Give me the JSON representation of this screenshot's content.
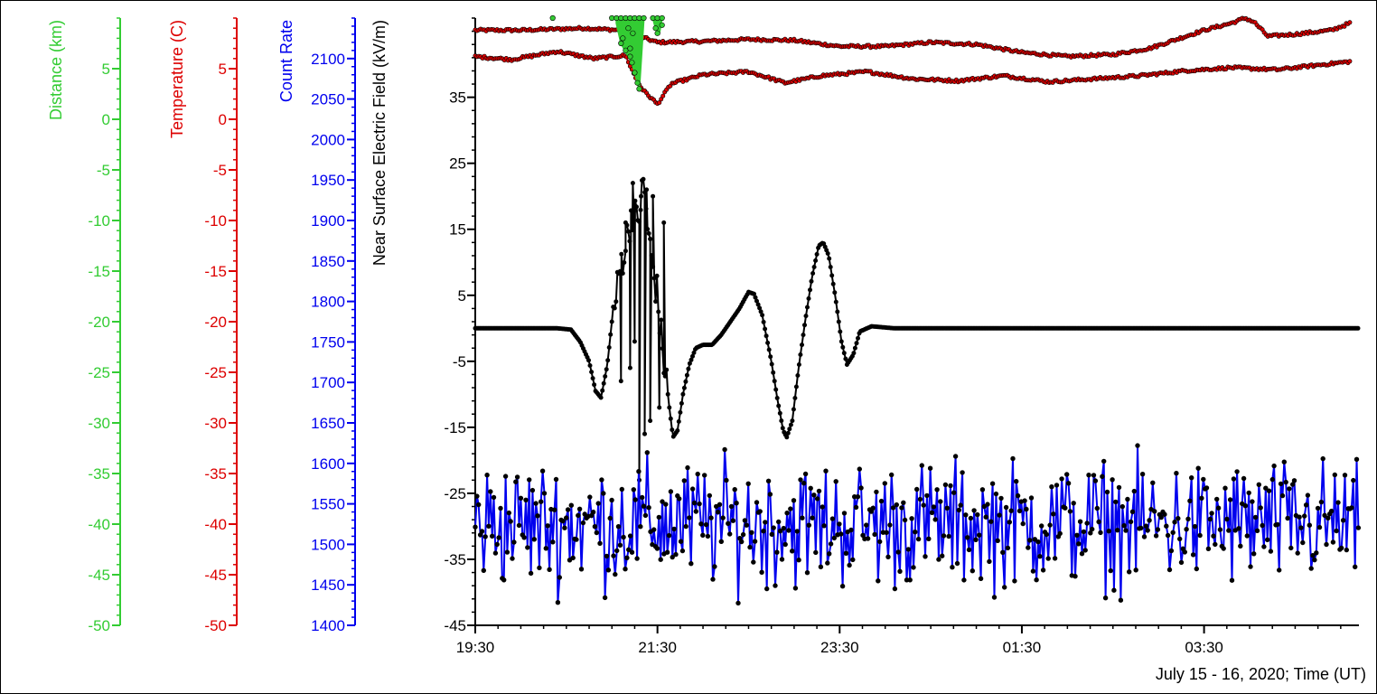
{
  "chart_data": {
    "type": "line",
    "xlabel": "July 15 - 16, 2020; Time (UT)",
    "x_range_hours": [
      0,
      9.7
    ],
    "x_ticks": [
      {
        "h": 0,
        "label": "19:30"
      },
      {
        "h": 2,
        "label": "21:30"
      },
      {
        "h": 4,
        "label": "23:30"
      },
      {
        "h": 6,
        "label": "01:30"
      },
      {
        "h": 8,
        "label": "03:30"
      }
    ],
    "axes": [
      {
        "id": "distance",
        "label": "Distance (km)",
        "color": "#33cc33",
        "range": [
          -50,
          10
        ],
        "major": 5,
        "minor": 1,
        "ticks": [
          5,
          0,
          -5,
          -10,
          -15,
          -20,
          -25,
          -30,
          -35,
          -40,
          -45,
          -50
        ]
      },
      {
        "id": "temperature",
        "label": "Temperature (C)",
        "color": "#dd0000",
        "range": [
          -50,
          10
        ],
        "major": 5,
        "minor": 1,
        "ticks": [
          5,
          0,
          -5,
          -10,
          -15,
          -20,
          -25,
          -30,
          -35,
          -40,
          -45,
          -50
        ]
      },
      {
        "id": "count",
        "label": "Count Rate",
        "color": "#0000ee",
        "range": [
          1400,
          2150
        ],
        "major": 50,
        "minor": 10,
        "ticks": [
          2100,
          2050,
          2000,
          1950,
          1900,
          1850,
          1800,
          1750,
          1700,
          1650,
          1600,
          1550,
          1500,
          1450,
          1400
        ]
      },
      {
        "id": "efield",
        "label": "Near Surface Electric Field (kV/m)",
        "color": "#000000",
        "range": [
          -45,
          47
        ],
        "major": 10,
        "minor": 2,
        "ticks": [
          35,
          25,
          15,
          5,
          -5,
          -15,
          -25,
          -35,
          -45
        ]
      }
    ],
    "series": [
      {
        "name": "Temperature (C)",
        "axis": "temperature",
        "color": "#dd0000",
        "marker": "#dd0000",
        "anchors": [
          [
            0,
            8.8
          ],
          [
            0.5,
            8.8
          ],
          [
            1.2,
            9.0
          ],
          [
            1.6,
            8.8
          ],
          [
            2.0,
            7.6
          ],
          [
            2.5,
            7.7
          ],
          [
            3.0,
            7.9
          ],
          [
            3.5,
            7.8
          ],
          [
            4.0,
            7.2
          ],
          [
            4.5,
            7.2
          ],
          [
            5.0,
            7.6
          ],
          [
            5.5,
            7.4
          ],
          [
            6.0,
            6.6
          ],
          [
            6.5,
            6.2
          ],
          [
            7.0,
            6.4
          ],
          [
            7.4,
            7.0
          ],
          [
            7.7,
            7.9
          ],
          [
            8.0,
            8.8
          ],
          [
            8.3,
            9.5
          ],
          [
            8.45,
            10.0
          ],
          [
            8.55,
            9.6
          ],
          [
            8.7,
            8.2
          ],
          [
            9.0,
            8.4
          ],
          [
            9.4,
            8.8
          ],
          [
            9.6,
            9.5
          ]
        ]
      },
      {
        "name": "Temperature (C)",
        "axis": "temperature",
        "color": "#dd0000",
        "marker": "#dd0000",
        "anchors": [
          [
            0,
            6.2
          ],
          [
            0.4,
            5.9
          ],
          [
            0.9,
            6.7
          ],
          [
            1.3,
            6.0
          ],
          [
            1.65,
            6.3
          ],
          [
            1.78,
            3.7
          ],
          [
            1.85,
            2.8
          ],
          [
            2.0,
            1.5
          ],
          [
            2.15,
            3.5
          ],
          [
            2.5,
            4.4
          ],
          [
            3.0,
            4.7
          ],
          [
            3.4,
            3.6
          ],
          [
            3.8,
            4.3
          ],
          [
            4.3,
            4.7
          ],
          [
            4.8,
            4.0
          ],
          [
            5.3,
            3.8
          ],
          [
            5.8,
            4.3
          ],
          [
            6.3,
            3.7
          ],
          [
            6.8,
            4.0
          ],
          [
            7.3,
            4.3
          ],
          [
            7.8,
            4.8
          ],
          [
            8.3,
            5.1
          ],
          [
            8.8,
            4.9
          ],
          [
            9.3,
            5.4
          ],
          [
            9.6,
            5.7
          ]
        ]
      },
      {
        "name": "Distance (km)",
        "axis": "distance",
        "color": "#33cc33",
        "marker": "#33cc33",
        "points": [
          [
            0.85,
            10.0
          ],
          [
            1.5,
            10.0
          ],
          [
            1.55,
            10.0
          ],
          [
            1.6,
            10.0
          ],
          [
            1.65,
            10.0
          ],
          [
            1.7,
            10.0
          ],
          [
            1.75,
            10.0
          ],
          [
            1.8,
            10.0
          ],
          [
            1.85,
            10.0
          ],
          [
            1.95,
            10.0
          ],
          [
            2.0,
            10.0
          ],
          [
            2.05,
            10.0
          ],
          [
            1.6,
            7.5
          ],
          [
            1.65,
            6.8
          ],
          [
            1.7,
            6.2
          ],
          [
            1.72,
            5.6
          ],
          [
            1.75,
            4.6
          ],
          [
            1.78,
            3.6
          ],
          [
            1.8,
            3.0
          ],
          [
            1.62,
            8.0
          ],
          [
            1.68,
            9.0
          ],
          [
            1.7,
            7.0
          ],
          [
            1.73,
            8.5
          ],
          [
            2.0,
            8.5
          ],
          [
            1.98,
            9.0
          ],
          [
            2.05,
            9.3
          ]
        ]
      },
      {
        "name": "Near Surface Electric Field (kV/m)",
        "axis": "efield",
        "color": "#000000",
        "marker": "#000000",
        "anchors": [
          [
            0,
            0
          ],
          [
            0.9,
            0
          ],
          [
            1.05,
            -0.2
          ],
          [
            1.15,
            -2
          ],
          [
            1.25,
            -5
          ],
          [
            1.32,
            -9.5
          ],
          [
            1.38,
            -10.5
          ],
          [
            1.45,
            -5.5
          ],
          [
            1.5,
            1
          ],
          [
            1.55,
            5
          ],
          [
            1.6,
            10
          ],
          [
            1.65,
            12.5
          ],
          [
            1.72,
            18
          ],
          [
            1.78,
            16
          ],
          [
            1.85,
            22
          ],
          [
            1.9,
            14
          ],
          [
            1.95,
            9
          ],
          [
            2.0,
            5
          ],
          [
            2.05,
            -3
          ],
          [
            2.1,
            -8
          ],
          [
            2.13,
            -12
          ],
          [
            2.17,
            -16.5
          ],
          [
            2.22,
            -15.5
          ],
          [
            2.28,
            -10
          ],
          [
            2.35,
            -5.5
          ],
          [
            2.42,
            -3
          ],
          [
            2.5,
            -2.5
          ],
          [
            2.6,
            -2.5
          ],
          [
            2.7,
            -1
          ],
          [
            2.8,
            1
          ],
          [
            2.9,
            3
          ],
          [
            3.0,
            5.5
          ],
          [
            3.06,
            5.2
          ],
          [
            3.15,
            2
          ],
          [
            3.25,
            -5
          ],
          [
            3.32,
            -11
          ],
          [
            3.38,
            -15.5
          ],
          [
            3.42,
            -16.5
          ],
          [
            3.48,
            -14
          ],
          [
            3.55,
            -6
          ],
          [
            3.62,
            1
          ],
          [
            3.7,
            8
          ],
          [
            3.77,
            12.5
          ],
          [
            3.82,
            13
          ],
          [
            3.88,
            11
          ],
          [
            3.95,
            5
          ],
          [
            4.02,
            -2
          ],
          [
            4.08,
            -5.5
          ],
          [
            4.15,
            -4
          ],
          [
            4.22,
            -0.5
          ],
          [
            4.35,
            0.3
          ],
          [
            4.6,
            0
          ],
          [
            9.7,
            0
          ]
        ],
        "spikes": [
          [
            1.6,
            -8
          ],
          [
            1.65,
            16
          ],
          [
            1.7,
            -6
          ],
          [
            1.73,
            22
          ],
          [
            1.75,
            -2
          ],
          [
            1.8,
            -23
          ],
          [
            1.82,
            20
          ],
          [
            1.86,
            -16
          ],
          [
            1.88,
            21
          ],
          [
            1.92,
            -14
          ],
          [
            1.95,
            20
          ],
          [
            2.02,
            -12
          ],
          [
            2.07,
            16
          ]
        ]
      },
      {
        "name": "Count Rate",
        "axis": "count",
        "color": "#0000ee",
        "marker": "#000000",
        "baseline": 1525,
        "noise": 75
      }
    ]
  }
}
